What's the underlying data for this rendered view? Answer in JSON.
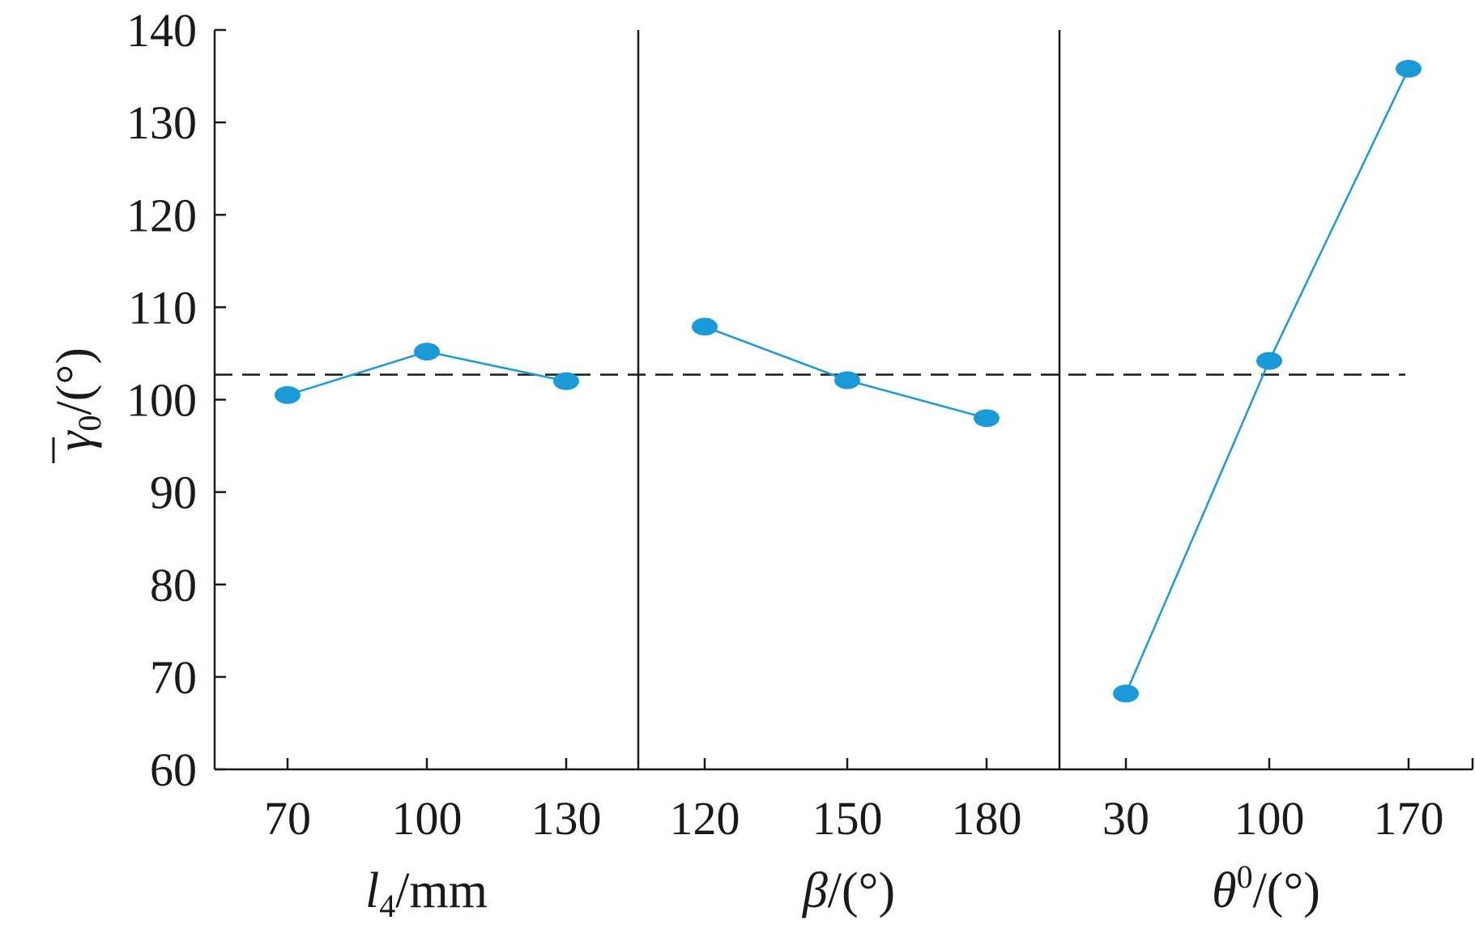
{
  "chart_data": {
    "type": "line",
    "ylabel": {
      "main": "γ",
      "sub": "0",
      "unit": "/(°)"
    },
    "ylim": [
      60,
      140
    ],
    "yticks": [
      "60",
      "70",
      "80",
      "90",
      "100",
      "110",
      "120",
      "130",
      "140"
    ],
    "reference_line": {
      "value": 102.7,
      "style": "dashed"
    },
    "grid": false,
    "panels": [
      {
        "xlabel": {
          "main": "l",
          "sub": "4",
          "unit": "/mm"
        },
        "categories": [
          "70",
          "100",
          "130"
        ],
        "values": [
          100.5,
          105.2,
          102.0
        ]
      },
      {
        "xlabel": {
          "main": "β",
          "sub": "",
          "unit": "/(°)"
        },
        "categories": [
          "120",
          "150",
          "180"
        ],
        "values": [
          107.9,
          102.1,
          98.0
        ]
      },
      {
        "xlabel": {
          "main": "θ",
          "sup": "0",
          "unit": "/(°)"
        },
        "categories": [
          "30",
          "100",
          "170"
        ],
        "values": [
          68.2,
          104.2,
          135.8
        ]
      }
    ],
    "colors": {
      "series": "#1a9ad6",
      "axes": "#1a1a1a"
    }
  }
}
